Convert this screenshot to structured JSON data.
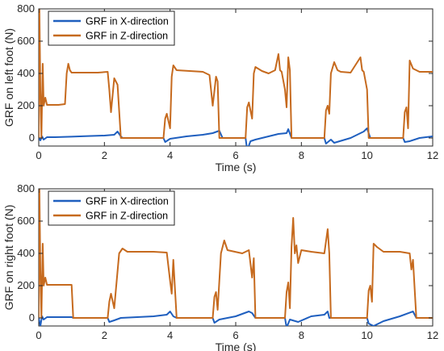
{
  "chart_data": [
    {
      "type": "line",
      "title": "",
      "xlabel": "Time (s)",
      "ylabel": "GRF on left foot (N)",
      "xlim": [
        0,
        12
      ],
      "ylim": [
        -50,
        800
      ],
      "xticks": [
        0,
        2,
        4,
        6,
        8,
        10,
        12
      ],
      "yticks": [
        0,
        200,
        400,
        600,
        800
      ],
      "grid": false,
      "legend": "top-left",
      "series": [
        {
          "name": "GRF in X-direction",
          "color": "#1f5fbf",
          "points": [
            [
              0,
              0
            ],
            [
              0.05,
              -15
            ],
            [
              0.1,
              10
            ],
            [
              0.15,
              -10
            ],
            [
              0.25,
              5
            ],
            [
              0.5,
              5
            ],
            [
              1.0,
              8
            ],
            [
              1.5,
              12
            ],
            [
              2.0,
              15
            ],
            [
              2.3,
              20
            ],
            [
              2.4,
              40
            ],
            [
              2.5,
              10
            ],
            [
              2.55,
              0
            ],
            [
              3.8,
              0
            ],
            [
              3.85,
              -25
            ],
            [
              4.0,
              -5
            ],
            [
              4.5,
              10
            ],
            [
              5.0,
              20
            ],
            [
              5.3,
              30
            ],
            [
              5.5,
              45
            ],
            [
              5.6,
              0
            ],
            [
              6.3,
              0
            ],
            [
              6.35,
              -75
            ],
            [
              6.45,
              -20
            ],
            [
              6.6,
              -10
            ],
            [
              7.0,
              10
            ],
            [
              7.3,
              25
            ],
            [
              7.55,
              30
            ],
            [
              7.6,
              55
            ],
            [
              7.7,
              0
            ],
            [
              8.7,
              0
            ],
            [
              8.75,
              -35
            ],
            [
              8.9,
              -10
            ],
            [
              9.0,
              -30
            ],
            [
              9.5,
              0
            ],
            [
              9.9,
              40
            ],
            [
              10.0,
              60
            ],
            [
              10.1,
              0
            ],
            [
              11.1,
              0
            ],
            [
              11.15,
              -25
            ],
            [
              11.3,
              -20
            ],
            [
              11.6,
              0
            ],
            [
              12,
              10
            ]
          ]
        },
        {
          "name": "GRF in Z-direction",
          "color": "#c66a1e",
          "points": [
            [
              0,
              0
            ],
            [
              0.02,
              800
            ],
            [
              0.05,
              300
            ],
            [
              0.08,
              0
            ],
            [
              0.12,
              460
            ],
            [
              0.15,
              200
            ],
            [
              0.2,
              250
            ],
            [
              0.25,
              205
            ],
            [
              0.6,
              205
            ],
            [
              0.8,
              210
            ],
            [
              0.85,
              400
            ],
            [
              0.9,
              460
            ],
            [
              0.95,
              420
            ],
            [
              1.0,
              405
            ],
            [
              1.8,
              405
            ],
            [
              2.1,
              410
            ],
            [
              2.15,
              300
            ],
            [
              2.2,
              160
            ],
            [
              2.3,
              370
            ],
            [
              2.4,
              330
            ],
            [
              2.5,
              0
            ],
            [
              3.8,
              0
            ],
            [
              3.85,
              120
            ],
            [
              3.9,
              150
            ],
            [
              4.0,
              60
            ],
            [
              4.05,
              380
            ],
            [
              4.1,
              450
            ],
            [
              4.2,
              420
            ],
            [
              5.0,
              410
            ],
            [
              5.2,
              390
            ],
            [
              5.3,
              200
            ],
            [
              5.4,
              380
            ],
            [
              5.45,
              350
            ],
            [
              5.5,
              0
            ],
            [
              6.3,
              0
            ],
            [
              6.35,
              190
            ],
            [
              6.4,
              220
            ],
            [
              6.5,
              120
            ],
            [
              6.55,
              400
            ],
            [
              6.6,
              440
            ],
            [
              6.8,
              415
            ],
            [
              7.0,
              400
            ],
            [
              7.2,
              420
            ],
            [
              7.3,
              520
            ],
            [
              7.35,
              420
            ],
            [
              7.4,
              410
            ],
            [
              7.5,
              300
            ],
            [
              7.55,
              190
            ],
            [
              7.6,
              500
            ],
            [
              7.65,
              420
            ],
            [
              7.7,
              0
            ],
            [
              8.7,
              0
            ],
            [
              8.75,
              170
            ],
            [
              8.8,
              200
            ],
            [
              8.85,
              150
            ],
            [
              8.9,
              400
            ],
            [
              9.0,
              470
            ],
            [
              9.1,
              420
            ],
            [
              9.2,
              410
            ],
            [
              9.5,
              405
            ],
            [
              9.8,
              500
            ],
            [
              9.85,
              420
            ],
            [
              9.9,
              410
            ],
            [
              10.0,
              300
            ],
            [
              10.05,
              0
            ],
            [
              11.1,
              0
            ],
            [
              11.15,
              160
            ],
            [
              11.2,
              190
            ],
            [
              11.25,
              60
            ],
            [
              11.3,
              480
            ],
            [
              11.4,
              430
            ],
            [
              11.6,
              410
            ],
            [
              12,
              410
            ]
          ]
        }
      ]
    },
    {
      "type": "line",
      "title": "",
      "xlabel": "Time (s)",
      "ylabel": "GRF on right foot (N)",
      "xlim": [
        0,
        12
      ],
      "ylim": [
        -50,
        800
      ],
      "xticks": [
        0,
        2,
        4,
        6,
        8,
        10,
        12
      ],
      "yticks": [
        0,
        200,
        400,
        600,
        800
      ],
      "grid": false,
      "legend": "top-left",
      "series": [
        {
          "name": "GRF in X-direction",
          "color": "#1f5fbf",
          "points": [
            [
              0,
              0
            ],
            [
              0.05,
              -50
            ],
            [
              0.1,
              10
            ],
            [
              0.15,
              -10
            ],
            [
              0.25,
              5
            ],
            [
              0.5,
              5
            ],
            [
              1.0,
              5
            ],
            [
              1.05,
              0
            ],
            [
              2.1,
              0
            ],
            [
              2.15,
              -25
            ],
            [
              2.3,
              -15
            ],
            [
              2.5,
              0
            ],
            [
              3.0,
              5
            ],
            [
              3.5,
              10
            ],
            [
              3.9,
              20
            ],
            [
              4.0,
              40
            ],
            [
              4.1,
              10
            ],
            [
              4.2,
              0
            ],
            [
              5.3,
              0
            ],
            [
              5.35,
              -30
            ],
            [
              5.5,
              -10
            ],
            [
              6.0,
              10
            ],
            [
              6.4,
              40
            ],
            [
              6.5,
              30
            ],
            [
              6.6,
              0
            ],
            [
              7.5,
              0
            ],
            [
              7.55,
              -60
            ],
            [
              7.65,
              -10
            ],
            [
              7.9,
              -25
            ],
            [
              8.3,
              10
            ],
            [
              8.7,
              20
            ],
            [
              8.8,
              40
            ],
            [
              8.85,
              0
            ],
            [
              10.0,
              0
            ],
            [
              10.05,
              -35
            ],
            [
              10.2,
              -50
            ],
            [
              10.5,
              -20
            ],
            [
              11.0,
              10
            ],
            [
              11.4,
              40
            ],
            [
              11.5,
              0
            ],
            [
              12,
              0
            ]
          ]
        },
        {
          "name": "GRF in Z-direction",
          "color": "#c66a1e",
          "points": [
            [
              0,
              0
            ],
            [
              0.02,
              800
            ],
            [
              0.05,
              300
            ],
            [
              0.08,
              0
            ],
            [
              0.12,
              460
            ],
            [
              0.15,
              200
            ],
            [
              0.2,
              250
            ],
            [
              0.25,
              205
            ],
            [
              0.6,
              205
            ],
            [
              1.0,
              205
            ],
            [
              1.05,
              0
            ],
            [
              2.1,
              0
            ],
            [
              2.15,
              100
            ],
            [
              2.2,
              150
            ],
            [
              2.3,
              60
            ],
            [
              2.45,
              400
            ],
            [
              2.55,
              430
            ],
            [
              2.7,
              410
            ],
            [
              3.5,
              410
            ],
            [
              3.9,
              405
            ],
            [
              4.0,
              230
            ],
            [
              4.05,
              150
            ],
            [
              4.1,
              360
            ],
            [
              4.2,
              0
            ],
            [
              5.3,
              0
            ],
            [
              5.35,
              130
            ],
            [
              5.4,
              160
            ],
            [
              5.45,
              50
            ],
            [
              5.55,
              400
            ],
            [
              5.65,
              480
            ],
            [
              5.75,
              420
            ],
            [
              6.2,
              400
            ],
            [
              6.4,
              420
            ],
            [
              6.5,
              250
            ],
            [
              6.55,
              370
            ],
            [
              6.6,
              0
            ],
            [
              7.5,
              0
            ],
            [
              7.55,
              160
            ],
            [
              7.6,
              220
            ],
            [
              7.65,
              60
            ],
            [
              7.7,
              440
            ],
            [
              7.75,
              620
            ],
            [
              7.8,
              400
            ],
            [
              7.85,
              450
            ],
            [
              7.9,
              340
            ],
            [
              8.0,
              420
            ],
            [
              8.3,
              410
            ],
            [
              8.7,
              400
            ],
            [
              8.8,
              550
            ],
            [
              8.85,
              400
            ],
            [
              8.9,
              0
            ],
            [
              10.0,
              0
            ],
            [
              10.05,
              170
            ],
            [
              10.1,
              200
            ],
            [
              10.15,
              100
            ],
            [
              10.2,
              460
            ],
            [
              10.3,
              440
            ],
            [
              10.5,
              410
            ],
            [
              11.0,
              410
            ],
            [
              11.3,
              400
            ],
            [
              11.35,
              300
            ],
            [
              11.4,
              360
            ],
            [
              11.5,
              0
            ],
            [
              12,
              0
            ]
          ]
        }
      ]
    }
  ]
}
